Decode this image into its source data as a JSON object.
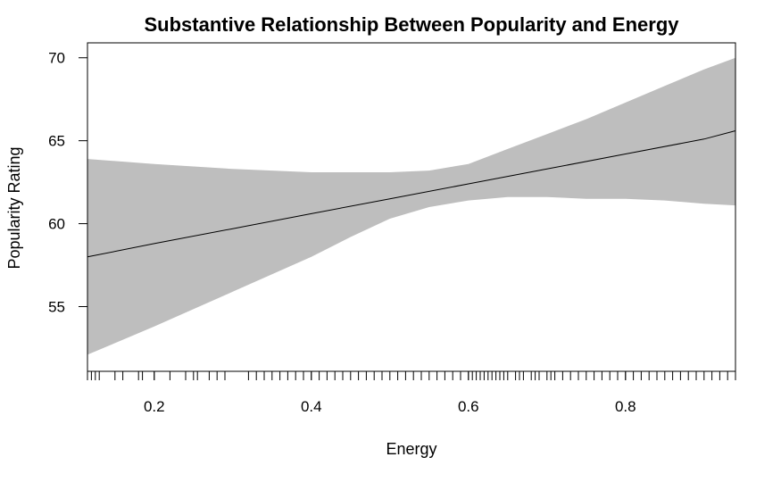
{
  "chart_data": {
    "type": "line",
    "title": "Substantive Relationship Between Popularity and Energy",
    "xlabel": "Energy",
    "ylabel": "Popularity Rating",
    "xlim": [
      0.115,
      0.94
    ],
    "ylim": [
      51.1,
      70.9
    ],
    "xticks": [
      0.2,
      0.4,
      0.6,
      0.8
    ],
    "yticks": [
      55,
      60,
      65,
      70
    ],
    "grid": false,
    "legend": "none",
    "colors": {
      "band": "#bebebe",
      "line": "#000000",
      "axis": "#000000"
    },
    "series": [
      {
        "x": [
          0.115,
          0.2,
          0.3,
          0.4,
          0.5,
          0.6,
          0.7,
          0.8,
          0.9,
          0.94
        ],
        "y": [
          58.0,
          58.8,
          59.7,
          60.6,
          61.5,
          62.4,
          63.3,
          64.2,
          65.1,
          65.6
        ]
      }
    ],
    "confidence_band": {
      "x": [
        0.115,
        0.2,
        0.3,
        0.4,
        0.45,
        0.5,
        0.55,
        0.6,
        0.65,
        0.7,
        0.75,
        0.8,
        0.85,
        0.9,
        0.94
      ],
      "lower": [
        52.1,
        53.8,
        55.9,
        58.0,
        59.2,
        60.3,
        61.0,
        61.4,
        61.6,
        61.6,
        61.5,
        61.5,
        61.4,
        61.2,
        61.1
      ],
      "upper": [
        63.9,
        63.6,
        63.3,
        63.1,
        63.1,
        63.1,
        63.2,
        63.6,
        64.5,
        65.4,
        66.3,
        67.3,
        68.3,
        69.3,
        70.0
      ]
    },
    "rug": [
      0.115,
      0.12,
      0.125,
      0.13,
      0.15,
      0.16,
      0.18,
      0.185,
      0.2,
      0.22,
      0.24,
      0.25,
      0.255,
      0.27,
      0.28,
      0.29,
      0.32,
      0.33,
      0.34,
      0.35,
      0.36,
      0.37,
      0.38,
      0.39,
      0.4,
      0.41,
      0.42,
      0.43,
      0.44,
      0.45,
      0.46,
      0.47,
      0.48,
      0.49,
      0.5,
      0.51,
      0.52,
      0.53,
      0.54,
      0.55,
      0.56,
      0.57,
      0.58,
      0.59,
      0.6,
      0.605,
      0.61,
      0.615,
      0.62,
      0.625,
      0.63,
      0.635,
      0.64,
      0.645,
      0.65,
      0.66,
      0.665,
      0.67,
      0.68,
      0.685,
      0.69,
      0.7,
      0.705,
      0.71,
      0.72,
      0.73,
      0.74,
      0.75,
      0.76,
      0.77,
      0.78,
      0.79,
      0.8,
      0.81,
      0.82,
      0.83,
      0.84,
      0.85,
      0.86,
      0.87,
      0.88,
      0.89,
      0.9,
      0.91,
      0.92,
      0.93,
      0.94
    ]
  }
}
